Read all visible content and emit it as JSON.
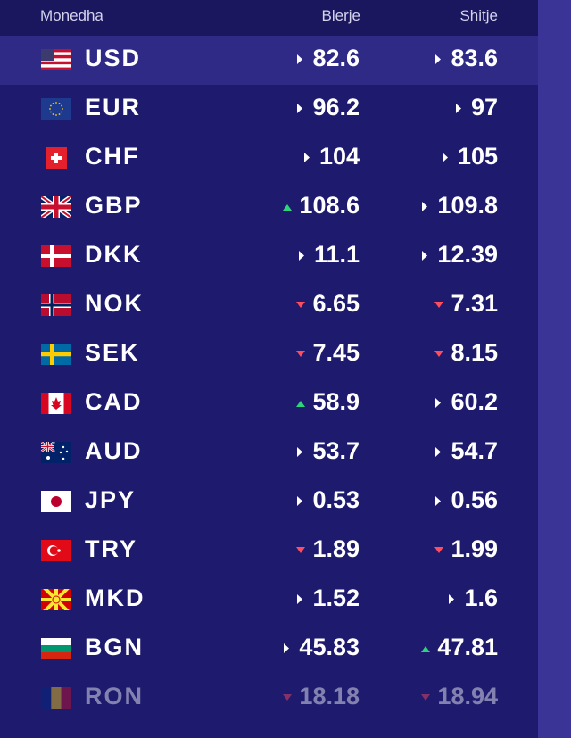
{
  "header": {
    "currency": "Monedha",
    "buy": "Blerje",
    "sell": "Shitje"
  },
  "colors": {
    "up": "#2bd67b",
    "down": "#ff4d5e",
    "neutral": "#ffffff"
  },
  "rates": [
    {
      "code": "USD",
      "flag": "us-flag",
      "buy": "82.6",
      "buy_trend": "neutral",
      "sell": "83.6",
      "sell_trend": "neutral"
    },
    {
      "code": "EUR",
      "flag": "eu-flag",
      "buy": "96.2",
      "buy_trend": "neutral",
      "sell": "97",
      "sell_trend": "neutral"
    },
    {
      "code": "CHF",
      "flag": "ch-flag",
      "buy": "104",
      "buy_trend": "neutral",
      "sell": "105",
      "sell_trend": "neutral"
    },
    {
      "code": "GBP",
      "flag": "gb-flag",
      "buy": "108.6",
      "buy_trend": "up",
      "sell": "109.8",
      "sell_trend": "neutral"
    },
    {
      "code": "DKK",
      "flag": "dk-flag",
      "buy": "11.1",
      "buy_trend": "neutral",
      "sell": "12.39",
      "sell_trend": "neutral"
    },
    {
      "code": "NOK",
      "flag": "no-flag",
      "buy": "6.65",
      "buy_trend": "down",
      "sell": "7.31",
      "sell_trend": "down"
    },
    {
      "code": "SEK",
      "flag": "se-flag",
      "buy": "7.45",
      "buy_trend": "down",
      "sell": "8.15",
      "sell_trend": "down"
    },
    {
      "code": "CAD",
      "flag": "ca-flag",
      "buy": "58.9",
      "buy_trend": "up",
      "sell": "60.2",
      "sell_trend": "neutral"
    },
    {
      "code": "AUD",
      "flag": "au-flag",
      "buy": "53.7",
      "buy_trend": "neutral",
      "sell": "54.7",
      "sell_trend": "neutral"
    },
    {
      "code": "JPY",
      "flag": "jp-flag",
      "buy": "0.53",
      "buy_trend": "neutral",
      "sell": "0.56",
      "sell_trend": "neutral"
    },
    {
      "code": "TRY",
      "flag": "tr-flag",
      "buy": "1.89",
      "buy_trend": "down",
      "sell": "1.99",
      "sell_trend": "down"
    },
    {
      "code": "MKD",
      "flag": "mk-flag",
      "buy": "1.52",
      "buy_trend": "neutral",
      "sell": "1.6",
      "sell_trend": "neutral"
    },
    {
      "code": "BGN",
      "flag": "bg-flag",
      "buy": "45.83",
      "buy_trend": "neutral",
      "sell": "47.81",
      "sell_trend": "up"
    },
    {
      "code": "RON",
      "flag": "ro-flag",
      "buy": "18.18",
      "buy_trend": "down",
      "sell": "18.94",
      "sell_trend": "down"
    }
  ]
}
